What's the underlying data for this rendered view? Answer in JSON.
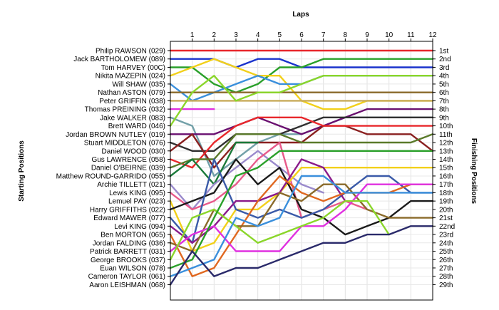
{
  "chart_data": {
    "type": "line",
    "title": "",
    "xlabel": "Laps",
    "ylabel": "Starting Positions",
    "y2label": "Finishing Positions",
    "laps": [
      "1",
      "2",
      "3",
      "4",
      "5",
      "6",
      "7",
      "8",
      "9",
      "10",
      "11",
      "12"
    ],
    "finish_labels": [
      "1st",
      "2nd",
      "3rd",
      "4th",
      "5th",
      "6th",
      "7th",
      "8th",
      "9th",
      "10th",
      "11th",
      "12th",
      "13th",
      "14th",
      "15th",
      "16th",
      "17th",
      "18th",
      "19th",
      "20th",
      "21st",
      "22nd",
      "23rd",
      "24th",
      "25th",
      "26th",
      "27th",
      "28th",
      "29th"
    ],
    "grid": true,
    "series": [
      {
        "name": "Philip RAWSON (029)",
        "color": "#e8272b",
        "values": [
          1,
          1,
          1,
          1,
          1,
          1,
          1,
          1,
          1,
          1,
          1,
          1,
          1
        ]
      },
      {
        "name": "Jack BARTHOLOMEW (089)",
        "color": "#1a33cc",
        "values": [
          2,
          2,
          2,
          3,
          2,
          2,
          3,
          3,
          3,
          3,
          3,
          3,
          3
        ]
      },
      {
        "name": "Tom HARVEY (00C)",
        "color": "#2aa02a",
        "values": [
          3,
          3,
          5,
          6,
          5,
          3,
          3,
          2,
          2,
          2,
          2,
          2,
          2
        ]
      },
      {
        "name": "Nikita MAZEPIN (024)",
        "color": "#f2d01a",
        "values": [
          4,
          3,
          2,
          3,
          4,
          4,
          7,
          8,
          8,
          7,
          7,
          7,
          7
        ]
      },
      {
        "name": "Will SHAW (035)",
        "color": "#3a8fdc",
        "values": [
          5,
          7,
          6,
          5,
          4,
          5,
          5,
          4,
          4,
          4,
          4,
          4,
          4
        ]
      },
      {
        "name": "Nathan ASTON (079)",
        "color": "#8a6a2a",
        "values": [
          6,
          6,
          6,
          6,
          6,
          6,
          6,
          6,
          6,
          6,
          6,
          6,
          6
        ]
      },
      {
        "name": "Peter GRIFFIN (038)",
        "color": "#c8ab5a",
        "values": [
          7,
          7,
          7,
          7,
          7,
          7,
          7,
          7,
          7,
          7,
          7,
          7,
          7
        ]
      },
      {
        "name": "Thomas PREINING (032)",
        "color": "#e030e0",
        "values": [
          8,
          8,
          8
        ]
      },
      {
        "name": "Jake WALKER (083)",
        "color": "#72a0a8",
        "values": [
          9,
          10,
          16,
          14,
          12,
          11,
          11,
          10,
          9,
          9,
          9,
          9,
          9
        ]
      },
      {
        "name": "Brett WARD (046)",
        "color": "#8ad62a",
        "values": [
          10,
          6,
          4,
          7,
          6,
          6,
          5,
          4,
          4,
          4,
          4,
          4,
          4
        ]
      },
      {
        "name": "Jordan BROWN NUTLEY (019)",
        "color": "#6a1070",
        "values": [
          11,
          11,
          11,
          10,
          9,
          10,
          11,
          10,
          9,
          8,
          8,
          8,
          8
        ]
      },
      {
        "name": "Stuart MIDDLETON (076)",
        "color": "#303030",
        "values": [
          12,
          13,
          13,
          11,
          11,
          11,
          10,
          9,
          9,
          9,
          9,
          9,
          9
        ]
      },
      {
        "name": "Daniel WOOD (030)",
        "color": "#8a2020",
        "values": [
          13,
          11,
          15,
          12,
          12,
          12,
          12,
          10,
          10,
          11,
          11,
          11,
          13
        ]
      },
      {
        "name": "Gus LAWRENCE (058)",
        "color": "#e8272b",
        "values": [
          14,
          15,
          12,
          10,
          9,
          9,
          9,
          10,
          10,
          10,
          10,
          10,
          10
        ]
      },
      {
        "name": "Daniel O'BEIRNE (039)",
        "color": "#5a7a2a",
        "values": [
          15,
          14,
          14,
          11,
          11,
          11,
          12,
          12,
          12,
          12,
          12,
          12,
          11
        ]
      },
      {
        "name": "Matthew ROUND-GARRIDO (055)",
        "color": "#1a7a3a",
        "values": [
          16,
          14,
          17,
          12,
          12
        ]
      },
      {
        "name": "Archie TILLETT (021)",
        "color": "#9a8acc",
        "values": [
          17,
          20,
          17,
          15,
          13,
          15,
          17,
          18
        ]
      },
      {
        "name": "Lewis KING (095)",
        "color": "#e85a8a",
        "values": [
          18,
          20,
          19,
          17,
          14,
          12,
          21,
          20,
          19,
          20
        ]
      },
      {
        "name": "Lemuel PAY (023)",
        "color": "#f2d01a",
        "values": [
          19,
          25,
          24,
          20,
          20,
          18,
          15,
          15,
          15,
          15,
          15,
          15,
          15
        ]
      },
      {
        "name": "Harry GRIFFITHS (022)",
        "color": "#1a1a1a",
        "values": [
          20,
          19,
          18,
          14,
          17,
          15,
          20,
          21,
          23,
          22,
          21,
          19,
          19
        ]
      },
      {
        "name": "Edward MAWER (077)",
        "color": "#3a5aa8",
        "values": [
          21,
          24,
          14,
          20,
          21,
          20,
          21,
          20,
          18,
          16,
          16,
          18,
          18
        ]
      },
      {
        "name": "Levi KING (094)",
        "color": "#8a1a8a",
        "values": [
          22,
          24,
          22,
          19,
          19,
          18,
          14,
          15,
          19
        ]
      },
      {
        "name": "Ben MORTON (065)",
        "color": "#e06820",
        "values": [
          23,
          28,
          27,
          23,
          19,
          16,
          18,
          19,
          18,
          18,
          18,
          17,
          17
        ]
      },
      {
        "name": "Jordan FALDING (036)",
        "color": "#8a6a2a",
        "values": [
          24,
          25,
          20,
          22,
          22,
          18,
          19,
          17,
          17,
          20,
          21,
          21,
          21
        ]
      },
      {
        "name": "Patrick BARRETT (031)",
        "color": "#e030e0",
        "values": [
          25,
          23,
          22,
          25,
          25,
          25,
          22,
          22,
          20,
          17,
          17,
          17,
          17
        ]
      },
      {
        "name": "George BROOKS (037)",
        "color": "#8ad62a",
        "values": [
          26,
          21,
          20,
          22,
          24,
          23,
          22,
          21,
          19,
          19,
          23
        ]
      },
      {
        "name": "Euan WILSON (078)",
        "color": "#2aa02a",
        "values": [
          27,
          26,
          21,
          16,
          15,
          13,
          13,
          13,
          13,
          13,
          13,
          13,
          13
        ]
      },
      {
        "name": "Cameron TAYLOR (061)",
        "color": "#3a8fdc",
        "values": [
          28,
          27,
          26,
          21,
          22,
          21,
          16,
          16,
          18,
          18,
          18,
          18,
          18
        ]
      },
      {
        "name": "Aaron LEISHMAN (068)",
        "color": "#2a2a6a",
        "values": [
          29,
          25,
          28,
          27,
          27,
          26,
          25,
          24,
          24,
          23,
          23,
          22,
          22
        ]
      }
    ]
  }
}
